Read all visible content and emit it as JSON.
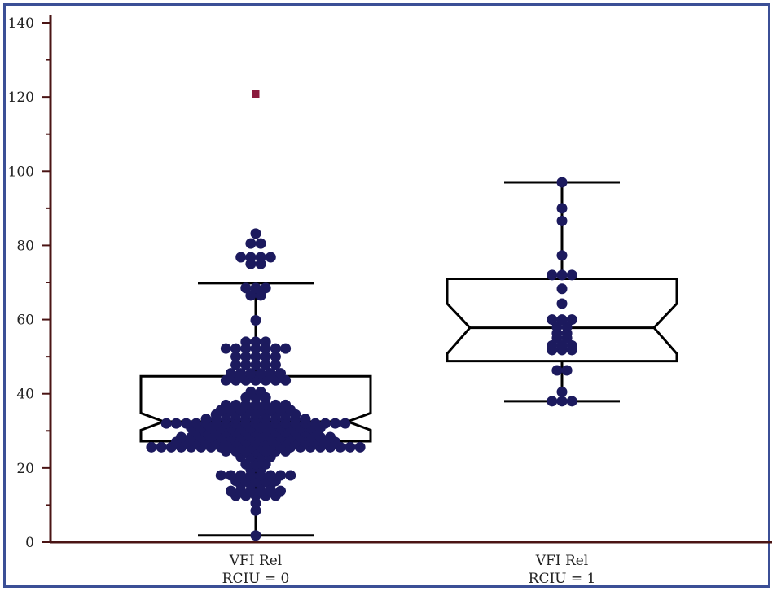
{
  "chart_data": {
    "type": "box",
    "title": "",
    "ylim": [
      0,
      140
    ],
    "yticks": [
      "0",
      "20",
      "40",
      "60",
      "80",
      "100",
      "120",
      "140"
    ],
    "categories": [
      {
        "line1": "VFI Rel",
        "line2": "RCIU = 0"
      },
      {
        "line1": "VFI Rel",
        "line2": "RCIU = 1"
      }
    ],
    "boxes": [
      {
        "name": "RCIU = 0",
        "whisker_low": 1.8,
        "q1": 27.2,
        "median": 32.5,
        "q3": 44.7,
        "whisker_high": 69.8,
        "notch_low": 30.2,
        "notch_high": 34.8,
        "outliers": [
          120.8
        ],
        "points": [
          [
            1.8,
            1
          ],
          [
            8.5,
            1
          ],
          [
            10.5,
            1
          ],
          [
            12.5,
            5
          ],
          [
            13.8,
            6
          ],
          [
            15.5,
            4
          ],
          [
            16.5,
            5
          ],
          [
            18,
            8
          ],
          [
            19.5,
            2
          ],
          [
            21,
            3
          ],
          [
            23,
            4
          ],
          [
            24.5,
            7
          ],
          [
            25.6,
            22
          ],
          [
            27,
            17
          ],
          [
            28.3,
            16
          ],
          [
            29.6,
            13
          ],
          [
            30.8,
            14
          ],
          [
            32,
            19
          ],
          [
            33.2,
            11
          ],
          [
            34.4,
            9
          ],
          [
            35.6,
            8
          ],
          [
            37,
            7
          ],
          [
            39,
            3
          ],
          [
            40.5,
            2
          ],
          [
            43.6,
            7
          ],
          [
            45.5,
            6
          ],
          [
            47.8,
            5
          ],
          [
            50,
            5
          ],
          [
            52.2,
            7
          ],
          [
            54,
            3
          ],
          [
            59.8,
            1
          ],
          [
            66.5,
            2
          ],
          [
            68.5,
            3
          ],
          [
            75,
            2
          ],
          [
            76.8,
            4
          ],
          [
            80.5,
            2
          ],
          [
            83.2,
            1
          ]
        ],
        "point_color": "#1c1a5e",
        "outlier_color": "#8b1a3d"
      },
      {
        "name": "RCIU = 1",
        "whisker_low": 38,
        "q1": 48.8,
        "median": 57.8,
        "q3": 71,
        "whisker_high": 97,
        "notch_low": 50.8,
        "notch_high": 64.3,
        "outliers": [],
        "points": [
          [
            38,
            3
          ],
          [
            40.5,
            1
          ],
          [
            46.3,
            2
          ],
          [
            51.8,
            3
          ],
          [
            53,
            3
          ],
          [
            55,
            2
          ],
          [
            56.3,
            2
          ],
          [
            58,
            2
          ],
          [
            60,
            3
          ],
          [
            64.3,
            1
          ],
          [
            68.3,
            1
          ],
          [
            72,
            3
          ],
          [
            77.3,
            1
          ],
          [
            86.6,
            1
          ],
          [
            90,
            1
          ],
          [
            97,
            1
          ]
        ],
        "point_color": "#1c1a5e",
        "outlier_color": "#8b1a3d"
      }
    ],
    "axis_color": "#4a1414",
    "frame_color": "#3b4f96"
  }
}
